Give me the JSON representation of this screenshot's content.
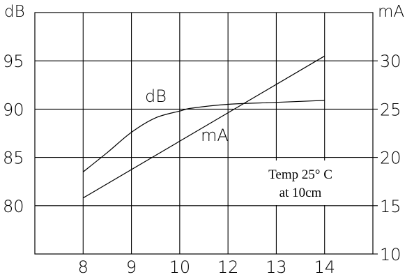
{
  "chart_data": {
    "type": "line",
    "left_unit": "dB",
    "right_unit": "mA",
    "x_ticks": [
      "8",
      "9",
      "10",
      "12",
      "13",
      "14"
    ],
    "left_ticks": [
      95,
      90,
      85,
      80
    ],
    "right_ticks": [
      30,
      25,
      20,
      15,
      10
    ],
    "left_ylim": [
      75,
      100
    ],
    "right_ylim": [
      10,
      35
    ],
    "grid": true,
    "series": [
      {
        "name": "dB",
        "axis": "left",
        "x": [
          "8",
          "8.5",
          "9",
          "9.5",
          "10",
          "10.5",
          "12",
          "13",
          "14"
        ],
        "y": [
          83.5,
          85.5,
          87.6,
          89.1,
          89.8,
          90.1,
          90.5,
          90.7,
          90.9
        ]
      },
      {
        "name": "mA",
        "axis": "right",
        "x": [
          "8",
          "14"
        ],
        "y": [
          15.8,
          30.5
        ]
      }
    ],
    "annotations": [
      "Temp 25° C",
      "at 10cm"
    ]
  }
}
